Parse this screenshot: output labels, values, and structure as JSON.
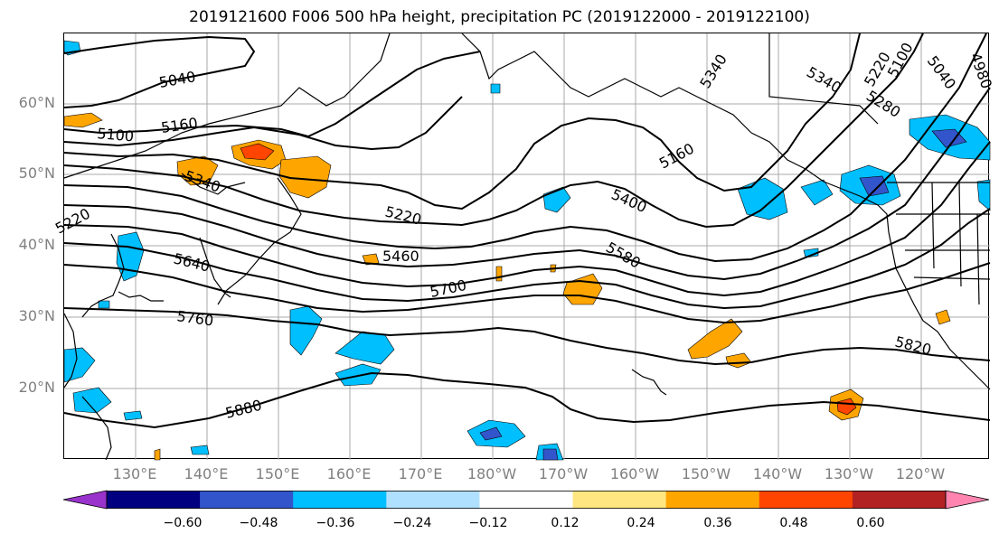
{
  "title": "2019121600 F006 500 hPa height, precipitation PC (2019122000 - 2019122100)",
  "lat_labels": [
    "60°N",
    "50°N",
    "40°N",
    "30°N",
    "20°N"
  ],
  "lon_labels": [
    "130°E",
    "140°E",
    "150°E",
    "160°E",
    "170°E",
    "180°W",
    "170°W",
    "160°W",
    "150°W",
    "140°W",
    "130°W",
    "120°W"
  ],
  "colorbar": {
    "colors": [
      "#9933cc",
      "#000080",
      "#3355cc",
      "#00bfff",
      "#b0e0ff",
      "#ffffff",
      "#ffe680",
      "#ffa500",
      "#ff4500",
      "#b22222",
      "#ff85b0"
    ],
    "ticks": [
      "−0.60",
      "−0.48",
      "−0.36",
      "−0.24",
      "−0.12",
      "0.12",
      "0.24",
      "0.36",
      "0.48",
      "0.60"
    ]
  },
  "contour_labels": [
    "5040",
    "5100",
    "5160",
    "5340",
    "5220",
    "5460",
    "5640",
    "5760",
    "5880",
    "5700",
    "5400",
    "5580",
    "5820",
    "5160",
    "5340",
    "5340",
    "5280",
    "5220",
    "5100",
    "5040",
    "4980",
    "5220"
  ]
}
